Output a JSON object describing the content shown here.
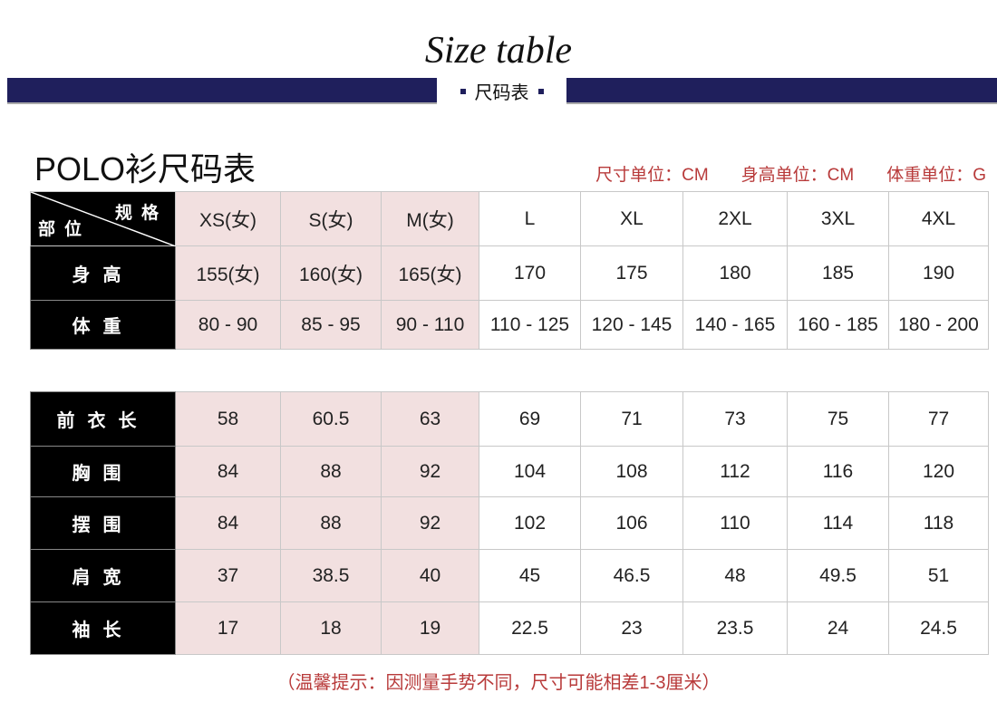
{
  "header": {
    "title": "Size table",
    "subtitle": "尺码表"
  },
  "product_title": "POLO衫尺码表",
  "units": [
    "尺寸单位：CM",
    "身高单位：CM",
    "体重单位：G"
  ],
  "corner": {
    "top": "规格",
    "bottom": "部位"
  },
  "sizes": [
    "XS(女)",
    "S(女)",
    "M(女)",
    "L",
    "XL",
    "2XL",
    "3XL",
    "4XL"
  ],
  "table1": [
    {
      "label": "身高",
      "values": [
        "155(女)",
        "160(女)",
        "165(女)",
        "170",
        "175",
        "180",
        "185",
        "190"
      ]
    },
    {
      "label": "体重",
      "values": [
        "80 - 90",
        "85 - 95",
        "90 - 110",
        "110 - 125",
        "120 - 145",
        "140 - 165",
        "160 - 185",
        "180 - 200"
      ]
    }
  ],
  "table2": [
    {
      "label": "前衣长",
      "values": [
        "58",
        "60.5",
        "63",
        "69",
        "71",
        "73",
        "75",
        "77"
      ]
    },
    {
      "label": "胸围",
      "values": [
        "84",
        "88",
        "92",
        "104",
        "108",
        "112",
        "116",
        "120"
      ]
    },
    {
      "label": "摆围",
      "values": [
        "84",
        "88",
        "92",
        "102",
        "106",
        "110",
        "114",
        "118"
      ]
    },
    {
      "label": "肩宽",
      "values": [
        "37",
        "38.5",
        "40",
        "45",
        "46.5",
        "48",
        "49.5",
        "51"
      ]
    },
    {
      "label": "袖长",
      "values": [
        "17",
        "18",
        "19",
        "22.5",
        "23",
        "23.5",
        "24",
        "24.5"
      ]
    }
  ],
  "note": "（温馨提示：因测量手势不同，尺寸可能相差1-3厘米）",
  "colors": {
    "navy": "#1f1f5c",
    "pink": "#f2e0e0",
    "red": "#b83a3a"
  }
}
